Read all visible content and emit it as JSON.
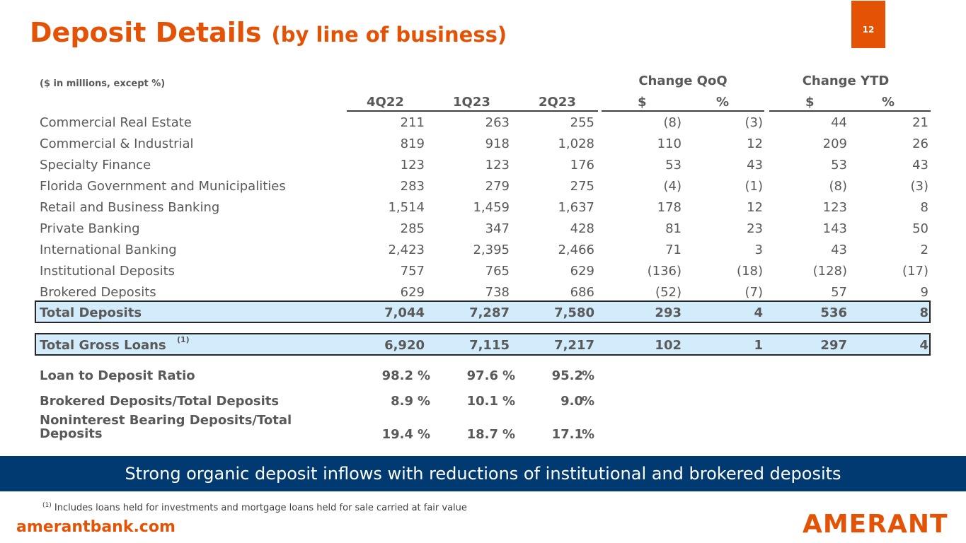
{
  "title": {
    "main": "Deposit Details",
    "sub": "(by line of business)"
  },
  "page_number": "12",
  "units_note": "($ in millions, except %)",
  "group_headers": {
    "qoq": "Change QoQ",
    "ytd": "Change YTD"
  },
  "columns": [
    "4Q22",
    "1Q23",
    "2Q23",
    "$",
    "%",
    "$",
    "%"
  ],
  "rows": [
    {
      "label": "Commercial Real Estate",
      "values": [
        "211",
        "263",
        "255",
        "(8)",
        "(3)",
        "44",
        "21"
      ]
    },
    {
      "label": "Commercial & Industrial",
      "values": [
        "819",
        "918",
        "1,028",
        "110",
        "12",
        "209",
        "26"
      ]
    },
    {
      "label": "Specialty Finance",
      "values": [
        "123",
        "123",
        "176",
        "53",
        "43",
        "53",
        "43"
      ]
    },
    {
      "label": "Florida Government and Municipalities",
      "values": [
        "283",
        "279",
        "275",
        "(4)",
        "(1)",
        "(8)",
        "(3)"
      ]
    },
    {
      "label": "Retail and Business Banking",
      "values": [
        "1,514",
        "1,459",
        "1,637",
        "178",
        "12",
        "123",
        "8"
      ]
    },
    {
      "label": "Private Banking",
      "values": [
        "285",
        "347",
        "428",
        "81",
        "23",
        "143",
        "50"
      ]
    },
    {
      "label": "International Banking",
      "values": [
        "2,423",
        "2,395",
        "2,466",
        "71",
        "3",
        "43",
        "2"
      ]
    },
    {
      "label": "Institutional Deposits",
      "values": [
        "757",
        "765",
        "629",
        "(136)",
        "(18)",
        "(128)",
        "(17)"
      ]
    },
    {
      "label": "Brokered Deposits",
      "values": [
        "629",
        "738",
        "686",
        "(52)",
        "(7)",
        "57",
        "9"
      ]
    }
  ],
  "total_deposits": {
    "label": "Total Deposits",
    "values": [
      "7,044",
      "7,287",
      "7,580",
      "293",
      "4",
      "536",
      "8"
    ]
  },
  "total_loans": {
    "label": "Total Gross Loans",
    "note": "(1)",
    "values": [
      "6,920",
      "7,115",
      "7,217",
      "102",
      "1",
      "297",
      "4"
    ]
  },
  "ratios": [
    {
      "label": "Loan to Deposit Ratio",
      "values": [
        "98.2",
        "97.6",
        "95.2"
      ],
      "unit": "%"
    },
    {
      "label": "Brokered Deposits/Total Deposits",
      "values": [
        "8.9",
        "10.1",
        "9.0"
      ],
      "unit": "%"
    },
    {
      "label_line1": "Noninterest Bearing Deposits/Total",
      "label_line2": "Deposits",
      "values": [
        "19.4",
        "18.7",
        "17.1"
      ],
      "unit": "%"
    }
  ],
  "banner": "Strong organic deposit inflows with reductions of institutional and brokered deposits",
  "footnote": {
    "marker": "(1)",
    "text": "Includes loans held for investments and mortgage loans held for sale carried at fair value"
  },
  "website": "amerantbank.com",
  "logo_text": "AMERANT",
  "colors": {
    "accent": "#e35205",
    "navy": "#003a70",
    "highlight": "#d3ecfb",
    "text": "#595959"
  }
}
